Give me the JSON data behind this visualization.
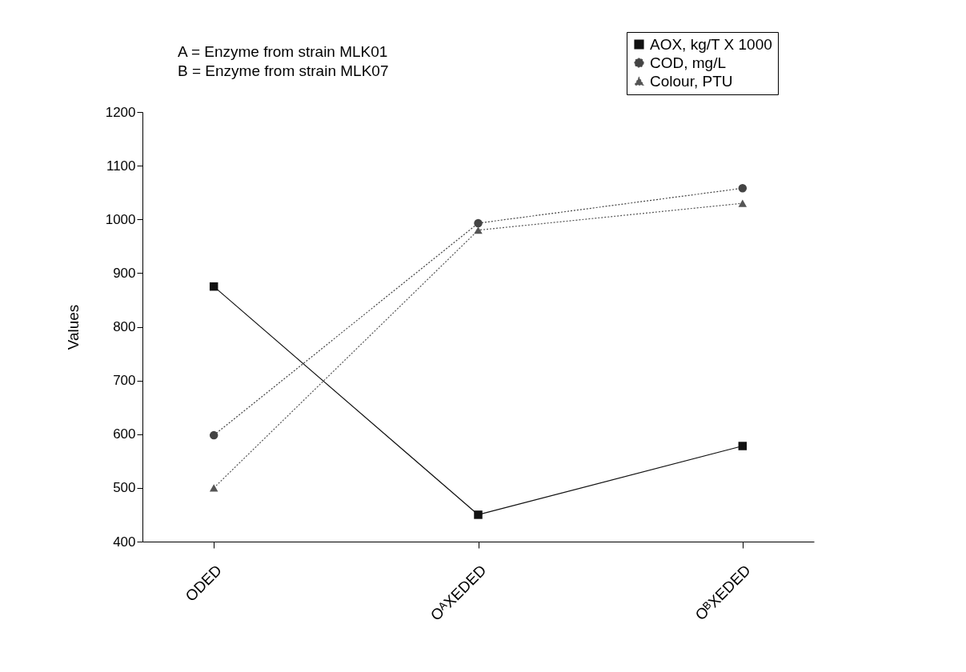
{
  "chart_data": {
    "type": "line",
    "ylabel": "Values",
    "categories": [
      "ODED",
      "OᴬXEDED",
      "OᴮXEDED"
    ],
    "series": [
      {
        "name": "AOX, kg/T X 1000",
        "color": "#111111",
        "marker": "square",
        "line_style": "solid",
        "values": [
          875,
          450,
          578
        ]
      },
      {
        "name": "COD, mg/L",
        "color": "#444444",
        "marker": "circle",
        "line_style": "dotted",
        "values": [
          598,
          993,
          1058
        ]
      },
      {
        "name": "Colour, PTU",
        "color": "#555555",
        "marker": "triangle",
        "line_style": "dotted",
        "values": [
          500,
          980,
          1030
        ]
      }
    ],
    "ylim": [
      400,
      1200
    ],
    "yticks": [
      400,
      500,
      600,
      700,
      800,
      900,
      1000,
      1100,
      1200
    ],
    "grid": false,
    "legend": "top right",
    "annotations": [
      "A = Enzyme from strain MLK01",
      "B = Enzyme from strain MLK07"
    ]
  }
}
